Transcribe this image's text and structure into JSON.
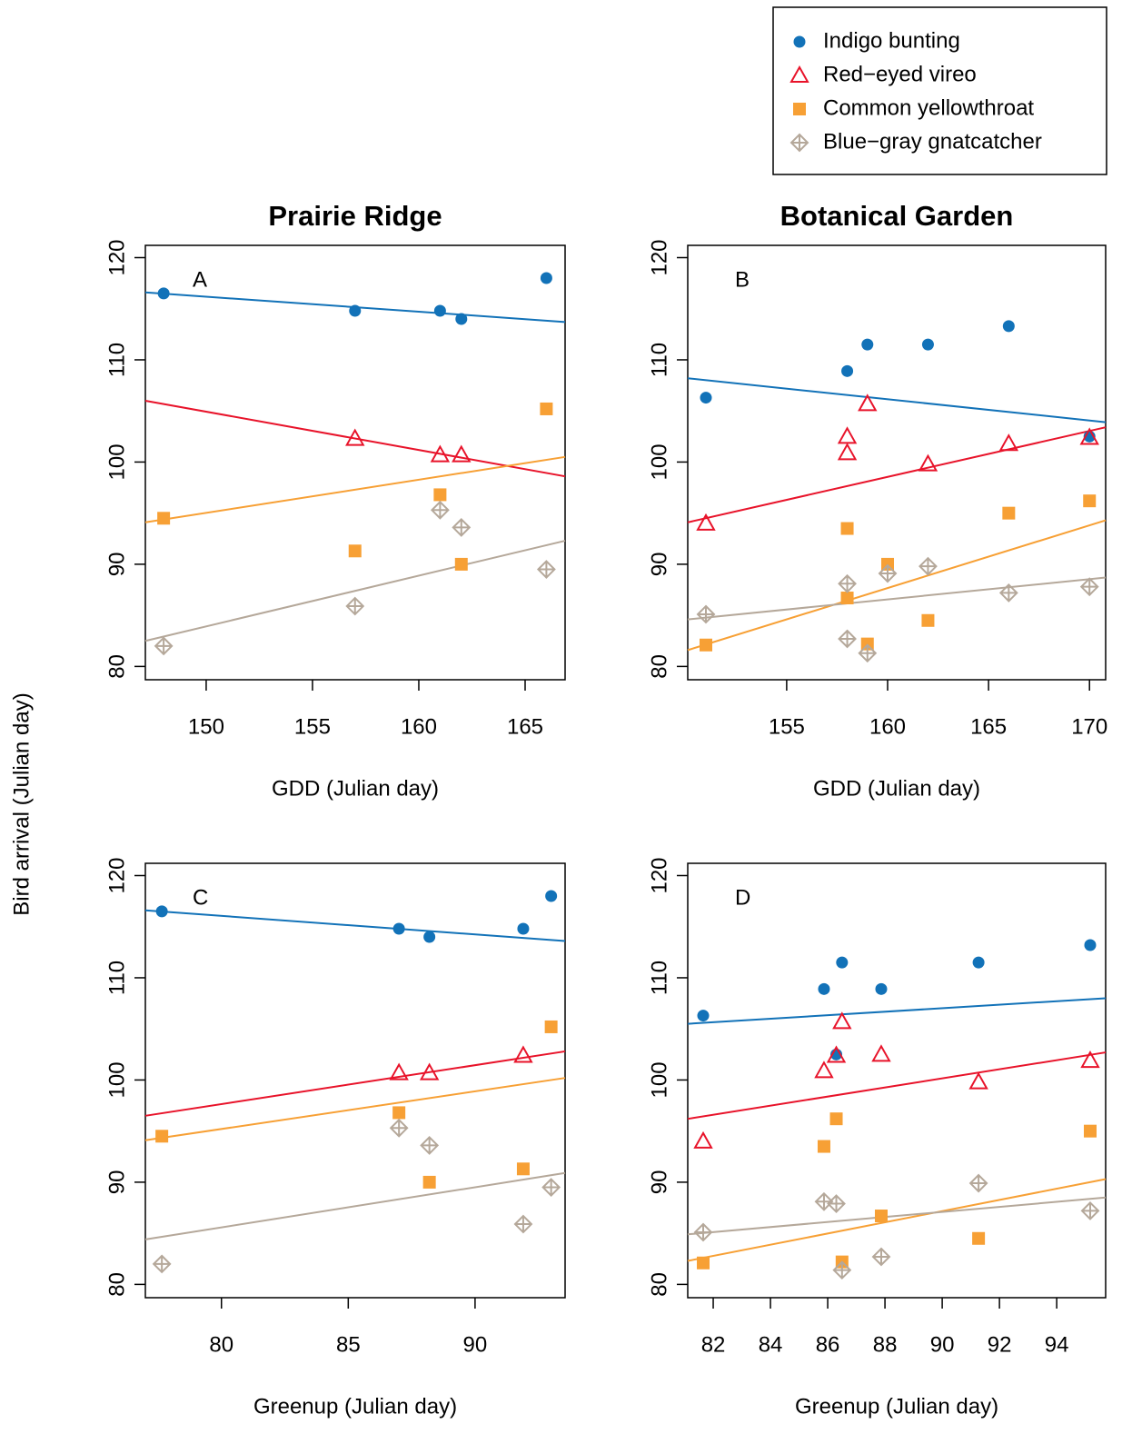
{
  "ylabel": "Bird arrival (Julian day)",
  "legend": {
    "position": "top-right"
  },
  "series_styles": [
    {
      "name": "Indigo bunting",
      "color": "#1272b8",
      "marker": "circle"
    },
    {
      "name": "Red−eyed vireo",
      "color": "#e8132a",
      "marker": "triangle"
    },
    {
      "name": "Common yellowthroat",
      "color": "#f7a035",
      "marker": "square"
    },
    {
      "name": "Blue−gray gnatcatcher",
      "color": "#b5a89a",
      "marker": "diamond-plus"
    }
  ],
  "chart_data": [
    {
      "type": "scatter",
      "title": "Prairie Ridge",
      "panel": "A",
      "xlabel": "GDD (Julian day)",
      "xlim": [
        147.14,
        166.88
      ],
      "xticks": [
        150,
        155,
        160,
        165
      ],
      "ylim": [
        78.7,
        121.2
      ],
      "yticks": [
        80,
        90,
        100,
        110,
        120
      ],
      "series": [
        {
          "x": [
            148,
            157,
            161,
            162,
            166
          ],
          "values": [
            116.5,
            114.8,
            114.8,
            114,
            118
          ],
          "fit": [
            116.6,
            113.7
          ]
        },
        {
          "x": [
            157,
            161,
            162
          ],
          "values": [
            102.3,
            100.7,
            100.7
          ],
          "fit": [
            106,
            98.6
          ]
        },
        {
          "x": [
            148,
            157,
            161,
            162,
            166
          ],
          "values": [
            94.5,
            91.3,
            96.8,
            90,
            105.2
          ],
          "fit": [
            94.1,
            100.5
          ]
        },
        {
          "x": [
            148,
            157,
            161,
            162,
            166
          ],
          "values": [
            82,
            85.9,
            95.3,
            93.6,
            89.5
          ],
          "fit": [
            82.5,
            92.3
          ]
        }
      ]
    },
    {
      "type": "scatter",
      "title": "Botanical Garden",
      "panel": "B",
      "xlabel": "GDD (Julian day)",
      "xlim": [
        150.1,
        170.8
      ],
      "xticks": [
        155,
        160,
        165,
        170
      ],
      "ylim": [
        78.7,
        121.2
      ],
      "yticks": [
        80,
        90,
        100,
        110,
        120
      ],
      "series": [
        {
          "x": [
            151,
            158,
            159,
            162,
            166,
            170
          ],
          "values": [
            106.3,
            108.9,
            111.5,
            111.5,
            113.3,
            102.5
          ],
          "fit": [
            108.2,
            103.9
          ]
        },
        {
          "x": [
            151,
            158,
            158,
            159,
            162,
            166,
            170
          ],
          "values": [
            94,
            102.5,
            100.9,
            105.7,
            99.8,
            101.8,
            102.4
          ],
          "fit": [
            94.1,
            103.4
          ]
        },
        {
          "x": [
            151,
            158,
            158,
            159,
            160,
            162,
            166,
            170
          ],
          "values": [
            82.1,
            93.5,
            86.7,
            82.2,
            90,
            84.5,
            95,
            96.2
          ],
          "fit": [
            81.6,
            94.3
          ]
        },
        {
          "x": [
            151,
            158,
            158,
            159,
            160,
            162,
            166,
            170
          ],
          "values": [
            85.1,
            88.1,
            82.7,
            81.3,
            89.1,
            89.8,
            87.2,
            87.8
          ],
          "fit": [
            84.6,
            88.7
          ]
        }
      ]
    },
    {
      "type": "scatter",
      "panel": "C",
      "xlabel": "Greenup (Julian day)",
      "xlim": [
        77,
        93.55
      ],
      "xticks": [
        80,
        85,
        90
      ],
      "ylim": [
        78.7,
        121.2
      ],
      "yticks": [
        80,
        90,
        100,
        110,
        120
      ],
      "series": [
        {
          "x": [
            77.65,
            87,
            88.2,
            91.9,
            93
          ],
          "values": [
            116.5,
            114.8,
            114,
            114.8,
            118
          ],
          "fit": [
            116.6,
            113.6
          ]
        },
        {
          "x": [
            87,
            88.2,
            91.9
          ],
          "values": [
            100.7,
            100.7,
            102.4
          ],
          "fit": [
            96.5,
            102.8
          ]
        },
        {
          "x": [
            77.65,
            87,
            88.2,
            91.9,
            93
          ],
          "values": [
            94.5,
            96.8,
            90,
            91.3,
            105.2
          ],
          "fit": [
            94.1,
            100.2
          ]
        },
        {
          "x": [
            77.65,
            87,
            88.2,
            91.9,
            93
          ],
          "values": [
            82,
            95.3,
            93.6,
            85.9,
            89.5
          ],
          "fit": [
            84.4,
            90.9
          ]
        }
      ]
    },
    {
      "type": "scatter",
      "panel": "D",
      "xlabel": "Greenup (Julian day)",
      "xlim": [
        81.11,
        95.71
      ],
      "xticks": [
        82,
        84,
        86,
        88,
        90,
        92,
        94
      ],
      "ylim": [
        78.7,
        121.2
      ],
      "yticks": [
        80,
        90,
        100,
        110,
        120
      ],
      "series": [
        {
          "x": [
            81.65,
            85.87,
            86.5,
            86.3,
            87.87,
            91.27,
            95.17
          ],
          "values": [
            106.3,
            108.9,
            111.5,
            102.5,
            108.9,
            111.5,
            113.2
          ],
          "fit": [
            105.5,
            108
          ]
        },
        {
          "x": [
            81.65,
            85.87,
            86.3,
            86.5,
            87.87,
            91.27,
            95.17
          ],
          "values": [
            94,
            100.9,
            102.4,
            105.7,
            102.5,
            99.8,
            101.9
          ],
          "fit": [
            96.2,
            102.7
          ]
        },
        {
          "x": [
            81.65,
            85.87,
            86.3,
            86.5,
            87.87,
            91.27,
            95.17
          ],
          "values": [
            82.1,
            93.5,
            96.2,
            82.2,
            86.7,
            84.5,
            95
          ],
          "fit": [
            82.3,
            90.3
          ]
        },
        {
          "x": [
            81.65,
            85.87,
            86.3,
            86.5,
            87.87,
            91.27,
            95.17
          ],
          "values": [
            85.1,
            88.1,
            87.9,
            81.4,
            82.7,
            89.9,
            87.2
          ],
          "fit": [
            84.9,
            88.5
          ]
        }
      ]
    }
  ]
}
